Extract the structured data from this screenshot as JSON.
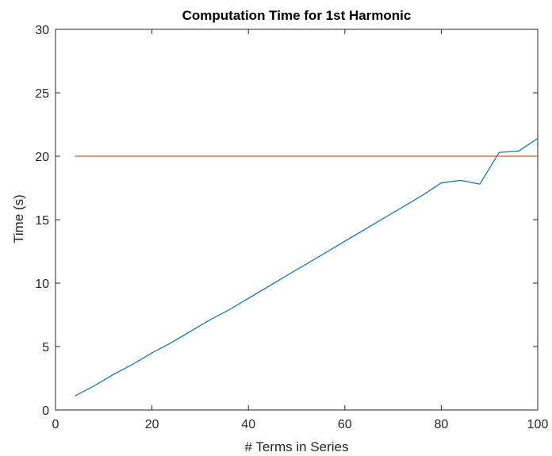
{
  "chart_data": {
    "type": "line",
    "title": "Computation Time for 1st Harmonic",
    "xlabel": "# Terms in Series",
    "ylabel": "Time (s)",
    "xlim": [
      0,
      100
    ],
    "ylim": [
      0,
      30
    ],
    "xticks": [
      0,
      20,
      40,
      60,
      80,
      100
    ],
    "yticks": [
      0,
      5,
      10,
      15,
      20,
      25,
      30
    ],
    "grid": false,
    "series": [
      {
        "color": "#0072BD",
        "x": [
          4,
          8,
          12,
          16,
          20,
          24,
          28,
          32,
          36,
          40,
          44,
          48,
          52,
          56,
          60,
          64,
          68,
          72,
          76,
          80,
          84,
          88,
          92,
          96,
          100
        ],
        "y": [
          1.1,
          1.9,
          2.8,
          3.6,
          4.5,
          5.3,
          6.2,
          7.1,
          7.9,
          8.8,
          9.7,
          10.6,
          11.5,
          12.4,
          13.3,
          14.2,
          15.1,
          16.0,
          16.9,
          17.9,
          18.1,
          17.8,
          20.3,
          20.4,
          21.4
        ]
      },
      {
        "color": "#D95319",
        "x": [
          4,
          100
        ],
        "y": [
          20,
          20
        ]
      }
    ]
  }
}
